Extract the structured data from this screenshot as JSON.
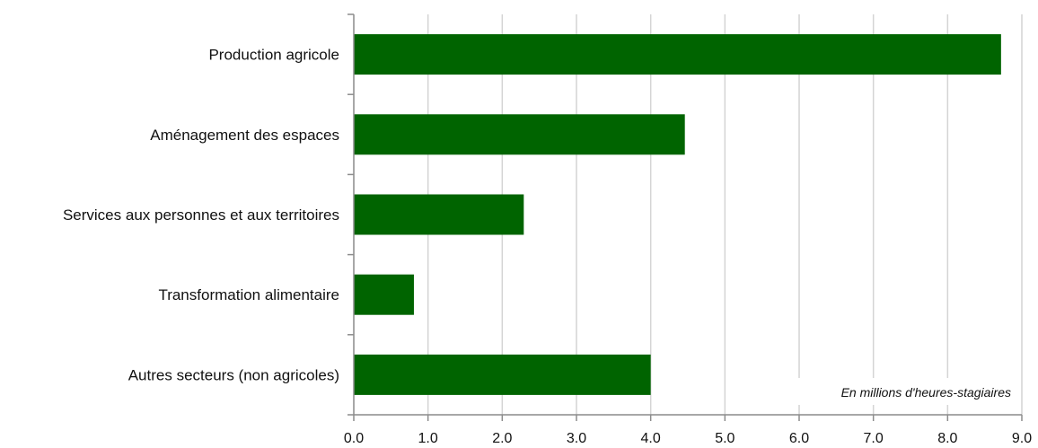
{
  "chart_data": {
    "type": "bar",
    "orientation": "horizontal",
    "categories": [
      "Production agricole",
      "Aménagement des espaces",
      "Services aux personnes et aux territoires",
      "Transformation alimentaire",
      "Autres secteurs (non agricoles)"
    ],
    "values": [
      8.72,
      4.46,
      2.29,
      0.81,
      4.0
    ],
    "xlim": [
      0,
      9
    ],
    "ticks": [
      "0.0",
      "1.0",
      "2.0",
      "3.0",
      "4.0",
      "5.0",
      "6.0",
      "7.0",
      "8.0",
      "9.0"
    ],
    "annotation": "En millions d'heures-stagiaires",
    "title": "",
    "xlabel": "",
    "ylabel": "",
    "grid": true,
    "bar_color": "#006400",
    "grid_color": "#d4d4d4",
    "axis_color": "#8c8c8c"
  }
}
